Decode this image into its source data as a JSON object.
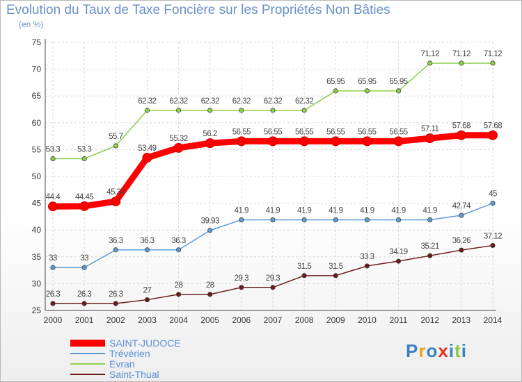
{
  "header": {
    "title": "Evolution du Taux de Taxe Foncière sur les Propriétés Non Bâties",
    "unit": "(en %)"
  },
  "logo": {
    "text": "Proxiti",
    "colors": [
      "#3b82c4",
      "#e8a020",
      "#3b82c4",
      "#e8302a",
      "#3b82c4",
      "#8cc63f",
      "#3b82c4"
    ]
  },
  "chart_data": {
    "type": "line",
    "title": "Evolution du Taux de Taxe Foncière sur les Propriétés Non Bâties",
    "xlabel": "",
    "ylabel": "(en %)",
    "ylim": [
      25,
      75
    ],
    "yticks": [
      25,
      30,
      35,
      40,
      45,
      50,
      55,
      60,
      65,
      70,
      75
    ],
    "grid": true,
    "categories": [
      "2000",
      "2001",
      "2002",
      "2003",
      "2004",
      "2005",
      "2006",
      "2007",
      "2008",
      "2009",
      "2010",
      "2011",
      "2012",
      "2013",
      "2014"
    ],
    "series": [
      {
        "name": "Evran",
        "color": "#8cd04a",
        "values": [
          53.3,
          53.3,
          55.7,
          62.32,
          62.32,
          62.32,
          62.32,
          62.32,
          62.32,
          65.95,
          65.95,
          65.95,
          71.12,
          71.12,
          71.12
        ],
        "labels": [
          "53.3",
          "53.3",
          "55.7",
          "62.32",
          "62.32",
          "62.32",
          "62.32",
          "62.32",
          "62.32",
          "65.95",
          "65.95",
          "65.95",
          "71.12",
          "71.12",
          "71.12"
        ]
      },
      {
        "name": "Trévérien",
        "color": "#5b9bd5",
        "values": [
          33,
          33,
          36.3,
          36.3,
          36.3,
          39.93,
          41.9,
          41.9,
          41.9,
          41.9,
          41.9,
          41.9,
          41.9,
          42.74,
          45
        ],
        "labels": [
          "33",
          "33",
          "36.3",
          "36.3",
          "36.3",
          "39.93",
          "41.9",
          "41.9",
          "41.9",
          "41.9",
          "41.9",
          "41.9",
          "41.9",
          "42.74",
          "45"
        ]
      },
      {
        "name": "Saint-Thual",
        "color": "#6b1a1a",
        "values": [
          26.3,
          26.3,
          26.3,
          27,
          28,
          28,
          29.3,
          29.3,
          31.5,
          31.5,
          33.3,
          34.19,
          35.21,
          36.26,
          37.12
        ],
        "labels": [
          "26.3",
          "26.3",
          "26.3",
          "27",
          "28",
          "28",
          "29.3",
          "29.3",
          "31.5",
          "31.5",
          "33.3",
          "34.19",
          "35.21",
          "36.26",
          "37.12"
        ]
      },
      {
        "name": "SAINT-JUDOCE",
        "color": "#ff0000",
        "values": [
          44.4,
          44.45,
          45.34,
          53.49,
          55.32,
          56.2,
          56.55,
          56.55,
          56.55,
          56.55,
          56.55,
          56.55,
          57.11,
          57.68,
          57.68
        ],
        "labels": [
          "44.4",
          "44.45",
          "45.34",
          "53.49",
          "55.32",
          "56.2",
          "56.55",
          "56.55",
          "56.55",
          "56.55",
          "56.55",
          "56.55",
          "57.11",
          "57.68",
          "57.68"
        ]
      }
    ],
    "legend": {
      "position": "bottom-left",
      "entries": [
        {
          "name": "SAINT-JUDOCE",
          "color": "#ff0000"
        },
        {
          "name": "Trévérien",
          "color": "#5b9bd5"
        },
        {
          "name": "Evran",
          "color": "#8cd04a"
        },
        {
          "name": "Saint-Thual",
          "color": "#6b1a1a"
        }
      ]
    }
  }
}
